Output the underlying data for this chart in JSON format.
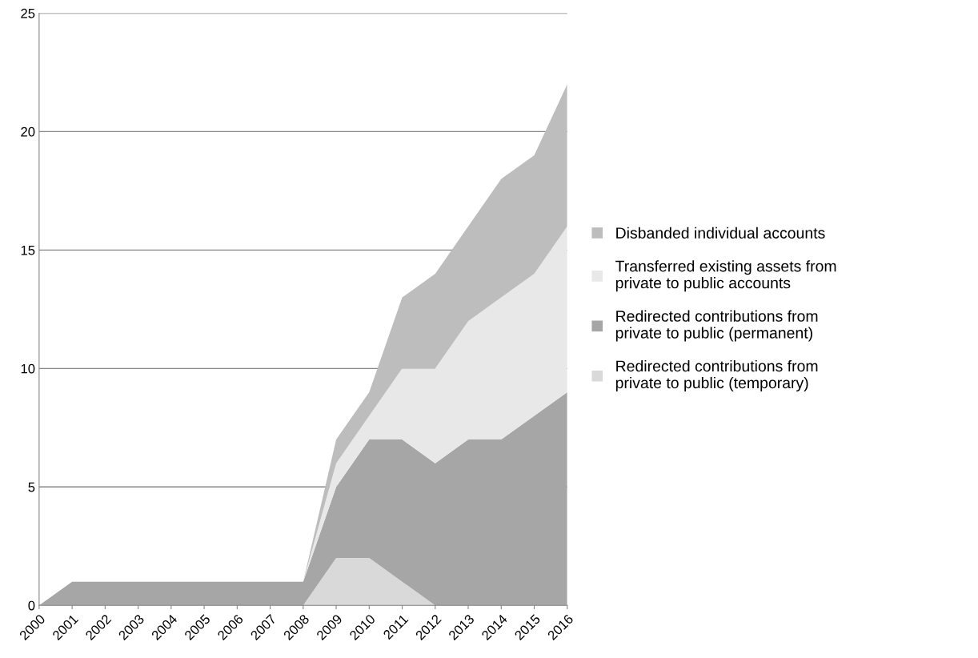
{
  "chart_data": {
    "type": "area",
    "stacked": true,
    "categories": [
      "2000",
      "2001",
      "2002",
      "2003",
      "2004",
      "2005",
      "2006",
      "2007",
      "2008",
      "2009",
      "2010",
      "2011",
      "2012",
      "2013",
      "2014",
      "2015",
      "2016"
    ],
    "series": [
      {
        "name": "Redirected contributions from private to public (temporary)",
        "color": "#d9d9d9",
        "values": [
          0,
          0,
          0,
          0,
          0,
          0,
          0,
          0,
          0,
          2,
          2,
          1,
          0,
          0,
          0,
          0,
          0
        ]
      },
      {
        "name": "Redirected contributions from private to public (permanent)",
        "color": "#a6a6a6",
        "values": [
          0,
          1,
          1,
          1,
          1,
          1,
          1,
          1,
          1,
          3,
          5,
          6,
          6,
          7,
          7,
          8,
          9
        ]
      },
      {
        "name": "Transferred existing assets from private to public accounts",
        "color": "#e8e8e8",
        "values": [
          0,
          0,
          0,
          0,
          0,
          0,
          0,
          0,
          0,
          1,
          1,
          3,
          4,
          5,
          6,
          6,
          7
        ]
      },
      {
        "name": "Disbanded individual accounts",
        "color": "#bdbdbd",
        "values": [
          0,
          0,
          0,
          0,
          0,
          0,
          0,
          0,
          0,
          1,
          1,
          3,
          4,
          4,
          5,
          5,
          6
        ]
      }
    ],
    "ylim": [
      0,
      25
    ],
    "yticks": [
      0,
      5,
      10,
      15,
      20,
      25
    ],
    "grid": "y",
    "legend": "right"
  }
}
